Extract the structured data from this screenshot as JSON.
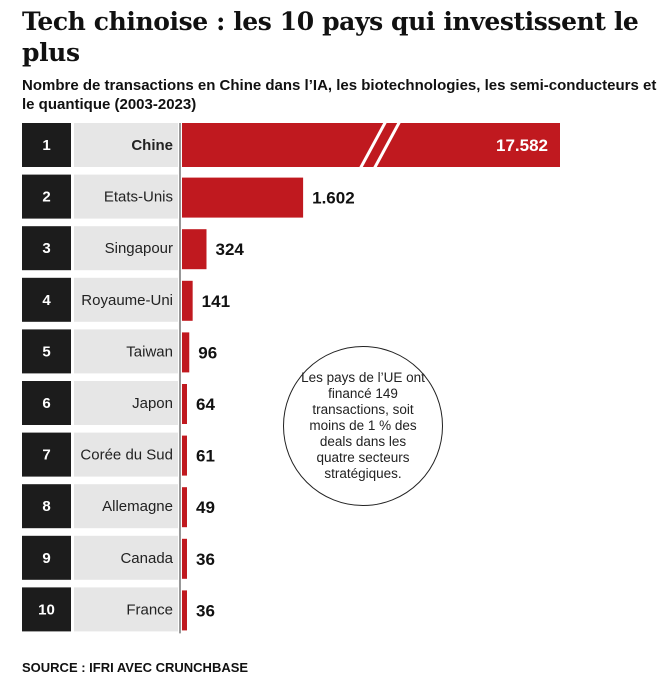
{
  "header": {
    "title": "Tech chinoise : les 10 pays qui investissent le plus",
    "subtitle": "Nombre de transactions en Chine dans l’IA, les biotechnologies, les semi-conducteurs et le quantique (2003-2023)"
  },
  "callout": {
    "text": "Les pays de l’UE ont financé 149 transactions, soit moins de 1 % des deals dans les quatre secteurs stratégiques."
  },
  "footer": {
    "source": "SOURCE : IFRI AVEC CRUNCHBASE"
  },
  "colors": {
    "bar": "#c0191f",
    "rank_box": "#1c1c1c",
    "label_box": "#e6e6e6",
    "axis": "#777777"
  },
  "chart_data": {
    "type": "bar",
    "orientation": "horizontal",
    "title": "Tech chinoise : les 10 pays qui investissent le plus",
    "subtitle": "Nombre de transactions en Chine dans l’IA, les biotechnologies, les semi-conducteurs et le quantique (2003-2023)",
    "ranks": [
      "1",
      "2",
      "3",
      "4",
      "5",
      "6",
      "7",
      "8",
      "9",
      "10"
    ],
    "categories": [
      "Chine",
      "Etats-Unis",
      "Singapour",
      "Royaume-Uni",
      "Taiwan",
      "Japon",
      "Corée du Sud",
      "Allemagne",
      "Canada",
      "France"
    ],
    "values": [
      17582,
      1602,
      324,
      141,
      96,
      64,
      61,
      49,
      36,
      36
    ],
    "value_labels": [
      "17.582",
      "1.602",
      "324",
      "141",
      "96",
      "64",
      "61",
      "49",
      "36",
      "36"
    ],
    "broken_axis_category": "Chine",
    "highlight_category": "Chine",
    "xlabel": "",
    "ylabel": ""
  }
}
